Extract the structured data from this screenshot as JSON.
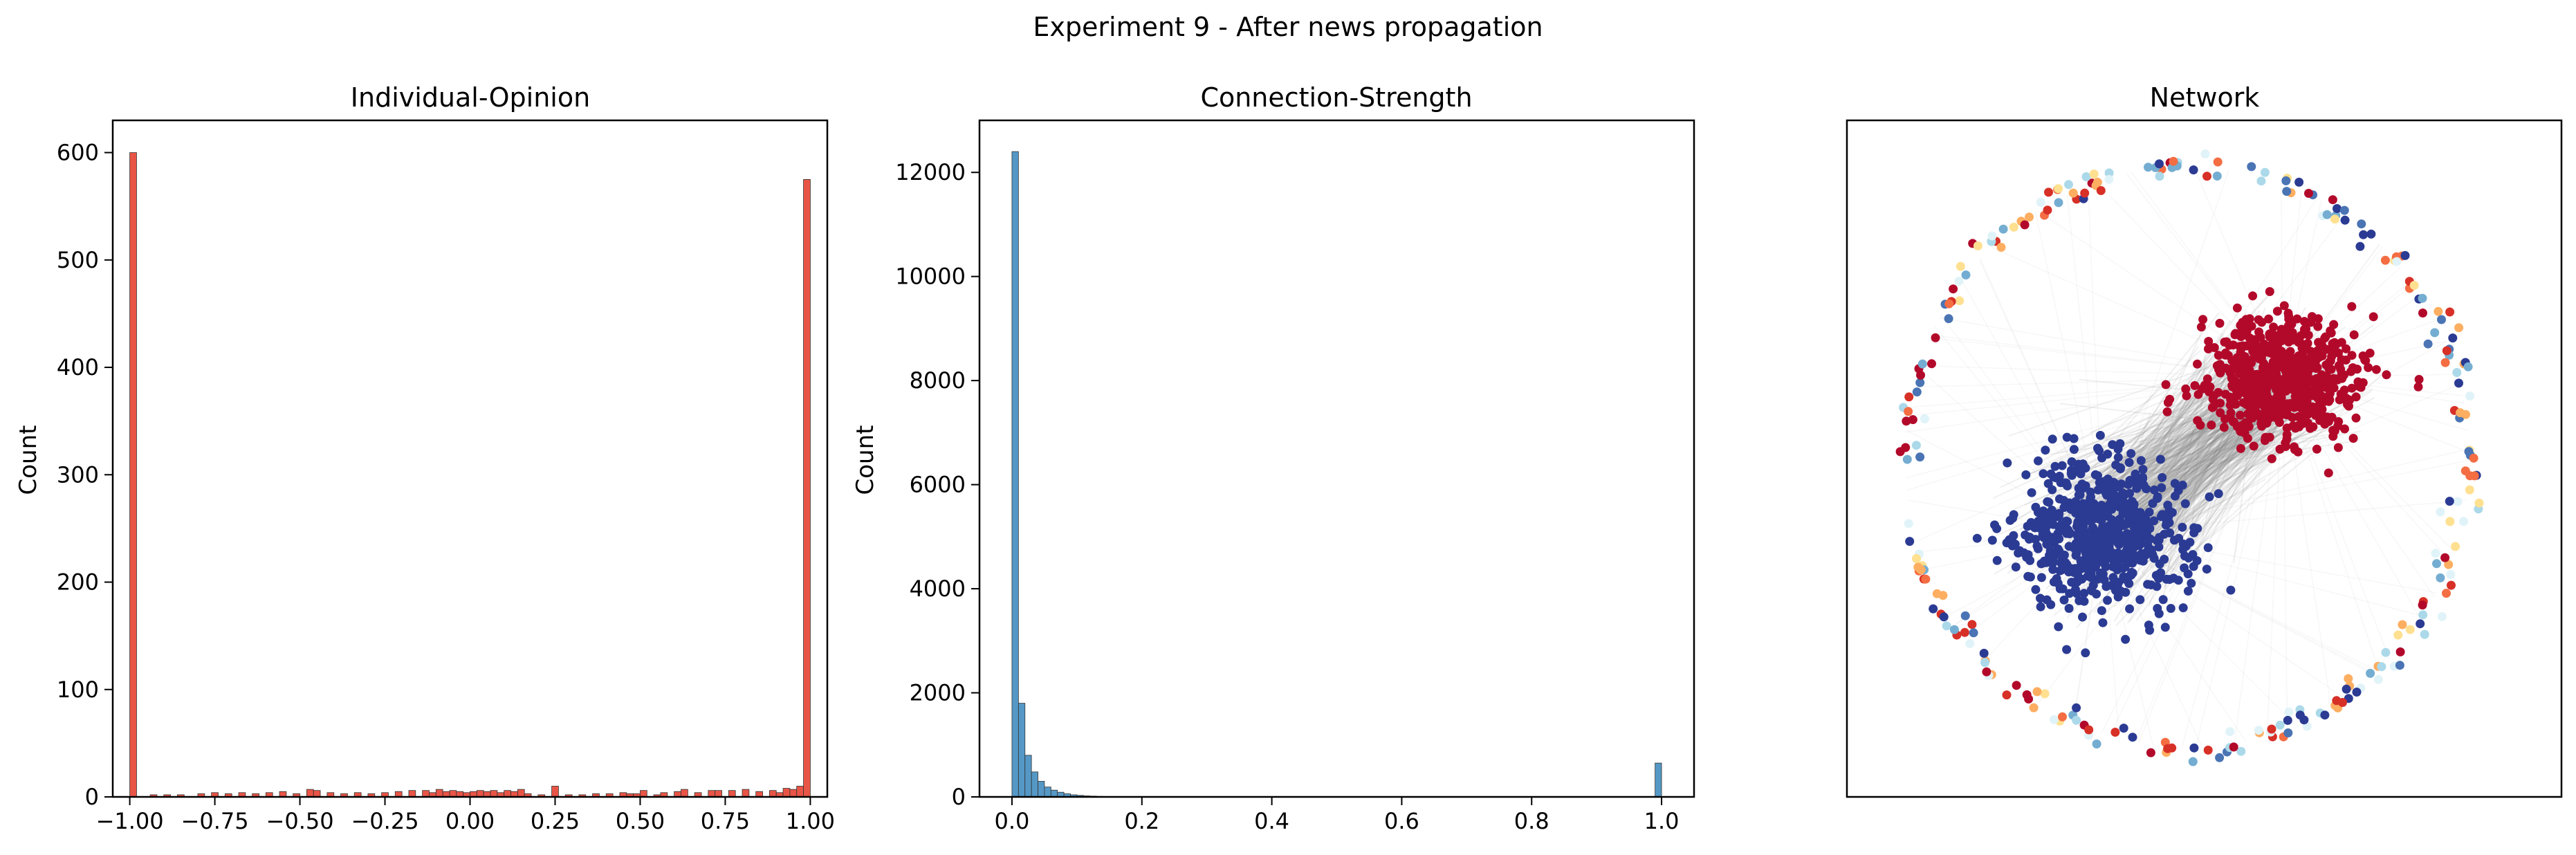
{
  "figure": {
    "title": "Experiment 9 - After news propagation"
  },
  "chart_data": [
    {
      "type": "bar",
      "title": "Individual-Opinion",
      "xlabel": "",
      "ylabel": "Count",
      "xlim": [
        -1.05,
        1.05
      ],
      "ylim": [
        0,
        630
      ],
      "xticks": [
        -1.0,
        -0.75,
        -0.5,
        -0.25,
        0.0,
        0.25,
        0.5,
        0.75,
        1.0
      ],
      "xtick_labels": [
        "−1.00",
        "−0.75",
        "−0.50",
        "−0.25",
        "0.00",
        "0.25",
        "0.50",
        "0.75",
        "1.00"
      ],
      "yticks": [
        0,
        100,
        200,
        300,
        400,
        500,
        600
      ],
      "ytick_labels": [
        "0",
        "100",
        "200",
        "300",
        "400",
        "500",
        "600"
      ],
      "bin_width": 0.02,
      "bins_start": [
        -1.0,
        -0.94,
        -0.9,
        -0.86,
        -0.8,
        -0.76,
        -0.72,
        -0.68,
        -0.64,
        -0.6,
        -0.56,
        -0.52,
        -0.48,
        -0.46,
        -0.42,
        -0.38,
        -0.34,
        -0.3,
        -0.26,
        -0.22,
        -0.18,
        -0.14,
        -0.12,
        -0.1,
        -0.08,
        -0.06,
        -0.04,
        -0.02,
        0.0,
        0.02,
        0.04,
        0.06,
        0.08,
        0.1,
        0.12,
        0.14,
        0.16,
        0.2,
        0.24,
        0.28,
        0.32,
        0.36,
        0.4,
        0.44,
        0.46,
        0.48,
        0.5,
        0.54,
        0.56,
        0.6,
        0.62,
        0.66,
        0.7,
        0.72,
        0.76,
        0.8,
        0.84,
        0.88,
        0.9,
        0.92,
        0.94,
        0.96,
        0.98
      ],
      "counts": [
        600,
        2,
        2,
        2,
        3,
        4,
        3,
        4,
        3,
        4,
        5,
        3,
        7,
        6,
        4,
        3,
        4,
        3,
        4,
        5,
        6,
        6,
        4,
        7,
        5,
        6,
        5,
        4,
        5,
        6,
        5,
        6,
        4,
        6,
        5,
        7,
        3,
        2,
        10,
        2,
        2,
        3,
        3,
        4,
        3,
        3,
        6,
        2,
        4,
        5,
        7,
        4,
        6,
        6,
        6,
        7,
        5,
        6,
        4,
        8,
        7,
        10,
        575
      ],
      "color": "#e74c3c"
    },
    {
      "type": "bar",
      "title": "Connection-Strength",
      "xlabel": "",
      "ylabel": "Count",
      "xlim": [
        -0.05,
        1.05
      ],
      "ylim": [
        0,
        13000
      ],
      "xticks": [
        0.0,
        0.2,
        0.4,
        0.6,
        0.8,
        1.0
      ],
      "xtick_labels": [
        "0.0",
        "0.2",
        "0.4",
        "0.6",
        "0.8",
        "1.0"
      ],
      "yticks": [
        0,
        2000,
        4000,
        6000,
        8000,
        10000,
        12000
      ],
      "ytick_labels": [
        "0",
        "2000",
        "4000",
        "6000",
        "8000",
        "10000",
        "12000"
      ],
      "bin_width": 0.01,
      "bins_start": [
        0.0,
        0.01,
        0.02,
        0.03,
        0.04,
        0.05,
        0.06,
        0.07,
        0.08,
        0.09,
        0.1,
        0.11,
        0.12,
        0.13,
        0.99
      ],
      "counts": [
        12400,
        1800,
        800,
        480,
        300,
        190,
        130,
        90,
        60,
        40,
        30,
        20,
        15,
        10,
        650
      ],
      "color": "#4c92c3"
    },
    {
      "type": "scatter",
      "title": "Network",
      "description": "network graph layout: outer ring of isolated nodes, blue (opinion -1) and red (opinion +1) clusters connected by grey edges",
      "legend": "none",
      "axes_ticks": false,
      "colors": {
        "negative_cluster": "#2b3b93",
        "positive_cluster": "#b2092a",
        "edges": "#808080",
        "ring_palette": [
          "#2b3b93",
          "#4a74b4",
          "#74add1",
          "#abd9e9",
          "#e0f3f8",
          "#fee090",
          "#fdae61",
          "#f46d43",
          "#d73027",
          "#b2092a"
        ]
      }
    }
  ]
}
